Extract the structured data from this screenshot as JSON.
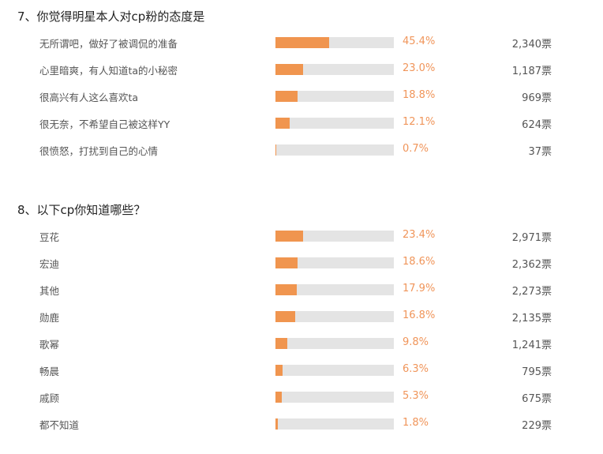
{
  "questions": [
    {
      "title": "7、你觉得明星本人对cp粉的态度是",
      "options": [
        {
          "label": "无所谓吧，做好了被调侃的准备",
          "percent": 45.4,
          "percent_label": "45.4%",
          "votes": "2,340票"
        },
        {
          "label": "心里暗爽，有人知道ta的小秘密",
          "percent": 23.0,
          "percent_label": "23.0%",
          "votes": "1,187票"
        },
        {
          "label": "很高兴有人这么喜欢ta",
          "percent": 18.8,
          "percent_label": "18.8%",
          "votes": "969票"
        },
        {
          "label": "很无奈，不希望自己被这样YY",
          "percent": 12.1,
          "percent_label": "12.1%",
          "votes": "624票"
        },
        {
          "label": "很愤怒，打扰到自己的心情",
          "percent": 0.7,
          "percent_label": "0.7%",
          "votes": "37票"
        }
      ]
    },
    {
      "title": "8、以下cp你知道哪些？",
      "options": [
        {
          "label": "豆花",
          "percent": 23.4,
          "percent_label": "23.4%",
          "votes": "2,971票"
        },
        {
          "label": "宏迪",
          "percent": 18.6,
          "percent_label": "18.6%",
          "votes": "2,362票"
        },
        {
          "label": "其他",
          "percent": 17.9,
          "percent_label": "17.9%",
          "votes": "2,273票"
        },
        {
          "label": "勋鹿",
          "percent": 16.8,
          "percent_label": "16.8%",
          "votes": "2,135票"
        },
        {
          "label": "歌幂",
          "percent": 9.8,
          "percent_label": "9.8%",
          "votes": "1,241票"
        },
        {
          "label": "畅晨",
          "percent": 6.3,
          "percent_label": "6.3%",
          "votes": "795票"
        },
        {
          "label": "戚顾",
          "percent": 5.3,
          "percent_label": "5.3%",
          "votes": "675票"
        },
        {
          "label": "都不知道",
          "percent": 1.8,
          "percent_label": "1.8%",
          "votes": "229票"
        }
      ]
    }
  ]
}
